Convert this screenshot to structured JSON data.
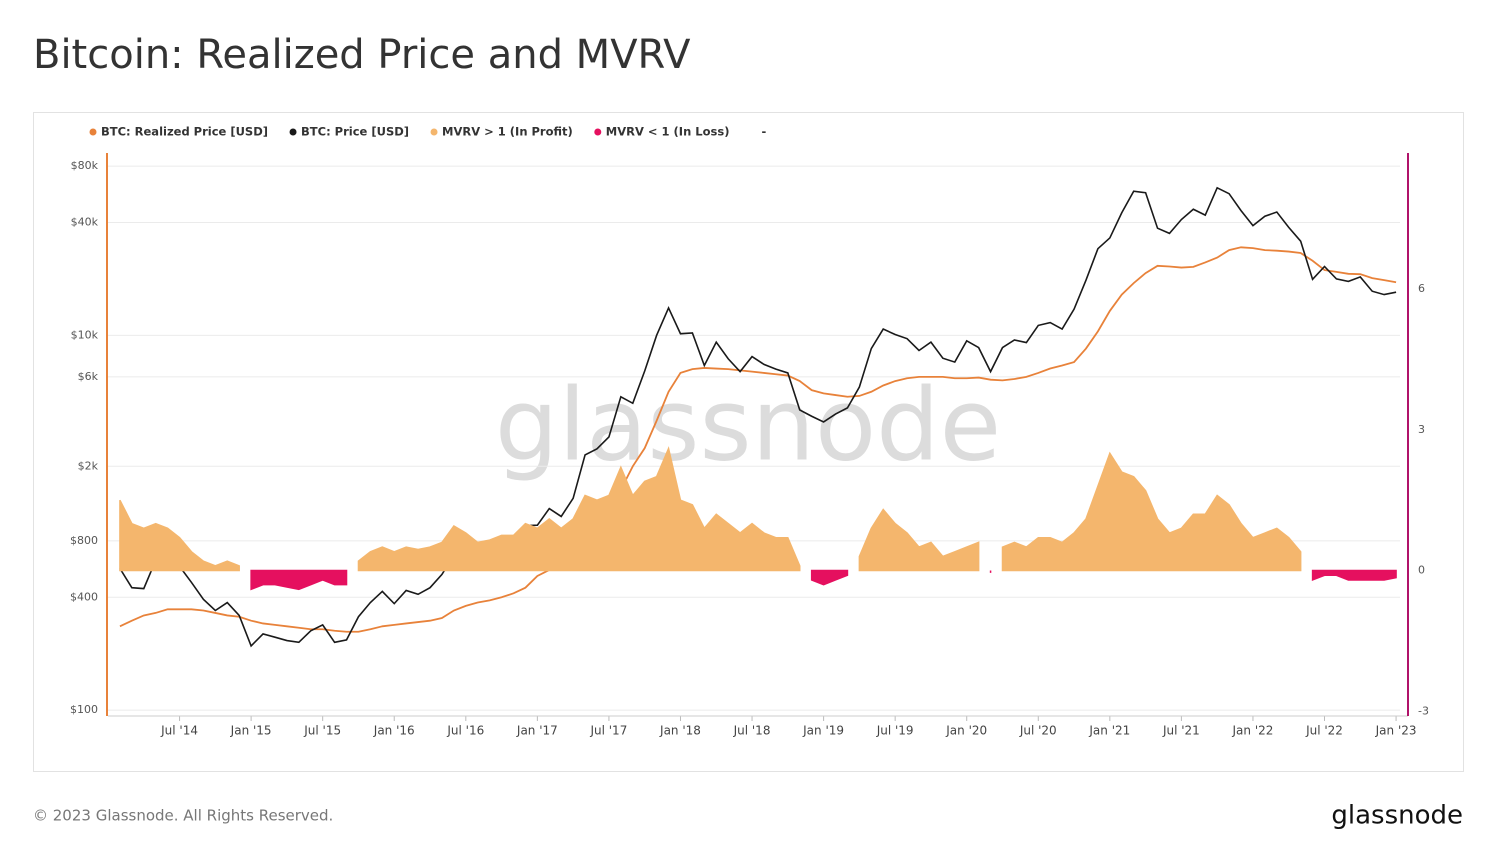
{
  "chart_data": {
    "type": "line",
    "title": "Bitcoin: Realized Price and MVRV",
    "footer": "© 2023 Glassnode. All Rights Reserved.",
    "logo": "glassnode",
    "watermark": "glassnode",
    "legend_extra": "-",
    "log_scale": true,
    "grid": true,
    "legend_position": "top-left",
    "x": [
      "2014-02",
      "2014-03",
      "2014-04",
      "2014-05",
      "2014-06",
      "2014-07",
      "2014-08",
      "2014-09",
      "2014-10",
      "2014-11",
      "2014-12",
      "2015-01",
      "2015-02",
      "2015-03",
      "2015-04",
      "2015-05",
      "2015-06",
      "2015-07",
      "2015-08",
      "2015-09",
      "2015-10",
      "2015-11",
      "2015-12",
      "2016-01",
      "2016-02",
      "2016-03",
      "2016-04",
      "2016-05",
      "2016-06",
      "2016-07",
      "2016-08",
      "2016-09",
      "2016-10",
      "2016-11",
      "2016-12",
      "2017-01",
      "2017-02",
      "2017-03",
      "2017-04",
      "2017-05",
      "2017-06",
      "2017-07",
      "2017-08",
      "2017-09",
      "2017-10",
      "2017-11",
      "2017-12",
      "2018-01",
      "2018-02",
      "2018-03",
      "2018-04",
      "2018-05",
      "2018-06",
      "2018-07",
      "2018-08",
      "2018-09",
      "2018-10",
      "2018-11",
      "2018-12",
      "2019-01",
      "2019-02",
      "2019-03",
      "2019-04",
      "2019-05",
      "2019-06",
      "2019-07",
      "2019-08",
      "2019-09",
      "2019-10",
      "2019-11",
      "2019-12",
      "2020-01",
      "2020-02",
      "2020-03",
      "2020-04",
      "2020-05",
      "2020-06",
      "2020-07",
      "2020-08",
      "2020-09",
      "2020-10",
      "2020-11",
      "2020-12",
      "2021-01",
      "2021-02",
      "2021-03",
      "2021-04",
      "2021-05",
      "2021-06",
      "2021-07",
      "2021-08",
      "2021-09",
      "2021-10",
      "2021-11",
      "2021-12",
      "2022-01",
      "2022-02",
      "2022-03",
      "2022-04",
      "2022-05",
      "2022-06",
      "2022-07",
      "2022-08",
      "2022-09",
      "2022-10",
      "2022-11",
      "2022-12",
      "2023-01"
    ],
    "xlim": [
      "2014-01",
      "2023-02"
    ],
    "xticks": [
      {
        "value": "2014-07",
        "label": "Jul '14"
      },
      {
        "value": "2015-01",
        "label": "Jan '15"
      },
      {
        "value": "2015-07",
        "label": "Jul '15"
      },
      {
        "value": "2016-01",
        "label": "Jan '16"
      },
      {
        "value": "2016-07",
        "label": "Jul '16"
      },
      {
        "value": "2017-01",
        "label": "Jan '17"
      },
      {
        "value": "2017-07",
        "label": "Jul '17"
      },
      {
        "value": "2018-01",
        "label": "Jan '18"
      },
      {
        "value": "2018-07",
        "label": "Jul '18"
      },
      {
        "value": "2019-01",
        "label": "Jan '19"
      },
      {
        "value": "2019-07",
        "label": "Jul '19"
      },
      {
        "value": "2020-01",
        "label": "Jan '20"
      },
      {
        "value": "2020-07",
        "label": "Jul '20"
      },
      {
        "value": "2021-01",
        "label": "Jan '21"
      },
      {
        "value": "2021-07",
        "label": "Jul '21"
      },
      {
        "value": "2022-01",
        "label": "Jan '22"
      },
      {
        "value": "2022-07",
        "label": "Jul '22"
      },
      {
        "value": "2023-01",
        "label": "Jan '23"
      }
    ],
    "ylim": [
      93,
      94000
    ],
    "yticks": [
      {
        "value": 100,
        "label": "$100"
      },
      {
        "value": 400,
        "label": "$400"
      },
      {
        "value": 800,
        "label": "$800"
      },
      {
        "value": 2000,
        "label": "$2k"
      },
      {
        "value": 6000,
        "label": "$6k"
      },
      {
        "value": 10000,
        "label": "$10k"
      },
      {
        "value": 40000,
        "label": "$40k"
      },
      {
        "value": 80000,
        "label": "$80k"
      }
    ],
    "y2lim": [
      -3.1,
      8.9
    ],
    "y2ticks": [
      -3,
      0,
      3,
      6
    ],
    "series": [
      {
        "name": "BTC: Realized Price [USD]",
        "color": "#e8823a",
        "style": "line",
        "values": [
          280,
          300,
          320,
          330,
          345,
          345,
          345,
          340,
          330,
          320,
          315,
          300,
          290,
          285,
          280,
          275,
          270,
          270,
          265,
          262,
          262,
          270,
          280,
          285,
          290,
          295,
          300,
          310,
          340,
          360,
          375,
          385,
          400,
          420,
          450,
          520,
          560,
          600,
          640,
          780,
          1000,
          1200,
          1500,
          2000,
          2500,
          3500,
          5000,
          6300,
          6600,
          6700,
          6650,
          6600,
          6500,
          6400,
          6300,
          6200,
          6100,
          5700,
          5100,
          4900,
          4800,
          4700,
          4750,
          5000,
          5400,
          5700,
          5900,
          6000,
          6000,
          6000,
          5900,
          5900,
          5950,
          5800,
          5750,
          5850,
          6000,
          6300,
          6650,
          6900,
          7200,
          8500,
          10500,
          13500,
          16500,
          19000,
          21500,
          23500,
          23300,
          23000,
          23200,
          24500,
          26000,
          28500,
          29500,
          29200,
          28500,
          28300,
          28000,
          27500,
          25000,
          22300,
          21800,
          21300,
          21200,
          20200,
          19700,
          19200
        ]
      },
      {
        "name": "BTC: Price [USD]",
        "color": "#1a1a1a",
        "style": "line",
        "values": [
          570,
          450,
          445,
          630,
          640,
          585,
          480,
          390,
          340,
          375,
          320,
          220,
          255,
          245,
          235,
          230,
          265,
          285,
          230,
          237,
          315,
          375,
          430,
          370,
          435,
          415,
          450,
          530,
          670,
          625,
          575,
          610,
          700,
          740,
          965,
          970,
          1190,
          1080,
          1350,
          2300,
          2480,
          2870,
          4700,
          4340,
          6450,
          10000,
          14000,
          10200,
          10300,
          6900,
          9200,
          7500,
          6400,
          7700,
          7000,
          6600,
          6300,
          4000,
          3700,
          3450,
          3800,
          4100,
          5300,
          8500,
          10800,
          10100,
          9600,
          8300,
          9200,
          7550,
          7200,
          9350,
          8600,
          6400,
          8600,
          9450,
          9150,
          11300,
          11700,
          10800,
          13800,
          19700,
          29000,
          33100,
          45100,
          58800,
          57700,
          37300,
          35000,
          41500,
          47100,
          43800,
          61300,
          57000,
          46300,
          38500,
          43200,
          45500,
          37700,
          31800,
          19900,
          23300,
          20000,
          19400,
          20500,
          17200,
          16500,
          17000
        ]
      },
      {
        "name": "MVRV > 1 (In Profit)",
        "color": "#f4b66d",
        "style": "area",
        "axis": "y2",
        "values": [
          1.5,
          1.0,
          0.9,
          1.0,
          0.9,
          0.7,
          0.4,
          0.2,
          0.1,
          0.2,
          0.1,
          null,
          null,
          null,
          null,
          null,
          null,
          null,
          null,
          null,
          0.2,
          0.4,
          0.5,
          0.4,
          0.5,
          0.45,
          0.5,
          0.6,
          0.95,
          0.8,
          0.6,
          0.65,
          0.75,
          0.75,
          1.0,
          0.9,
          1.1,
          0.9,
          1.1,
          1.6,
          1.5,
          1.6,
          2.2,
          1.6,
          1.9,
          2.0,
          2.6,
          1.5,
          1.4,
          0.9,
          1.2,
          1.0,
          0.8,
          1.0,
          0.8,
          0.7,
          0.7,
          0.1,
          null,
          null,
          null,
          null,
          0.3,
          0.9,
          1.3,
          1.0,
          0.8,
          0.5,
          0.6,
          0.3,
          0.4,
          0.5,
          0.6,
          null,
          0.5,
          0.6,
          0.5,
          0.7,
          0.7,
          0.6,
          0.8,
          1.1,
          1.8,
          2.5,
          2.1,
          2.0,
          1.7,
          1.1,
          0.8,
          0.9,
          1.2,
          1.2,
          1.6,
          1.4,
          1.0,
          0.7,
          0.8,
          0.9,
          0.7,
          0.4,
          null,
          null,
          null,
          null,
          null,
          null,
          null,
          null
        ]
      },
      {
        "name": "MVRV < 1 (In Loss)",
        "color": "#e5105f",
        "style": "area",
        "axis": "y2",
        "values": [
          null,
          null,
          null,
          null,
          null,
          null,
          null,
          null,
          null,
          null,
          null,
          -0.4,
          -0.3,
          -0.3,
          -0.35,
          -0.4,
          -0.3,
          -0.2,
          -0.3,
          -0.3,
          null,
          null,
          null,
          null,
          null,
          null,
          null,
          null,
          null,
          null,
          null,
          null,
          null,
          null,
          null,
          null,
          null,
          null,
          null,
          null,
          null,
          null,
          null,
          null,
          null,
          null,
          null,
          null,
          null,
          null,
          null,
          null,
          null,
          null,
          null,
          null,
          null,
          null,
          -0.2,
          -0.3,
          -0.2,
          -0.1,
          null,
          null,
          null,
          null,
          null,
          null,
          null,
          null,
          null,
          null,
          null,
          -0.05,
          null,
          null,
          null,
          null,
          null,
          null,
          null,
          null,
          null,
          null,
          null,
          null,
          null,
          null,
          null,
          null,
          null,
          null,
          null,
          null,
          null,
          null,
          null,
          null,
          null,
          null,
          -0.2,
          -0.1,
          -0.1,
          -0.2,
          -0.2,
          -0.2,
          -0.2,
          -0.15
        ]
      }
    ]
  }
}
